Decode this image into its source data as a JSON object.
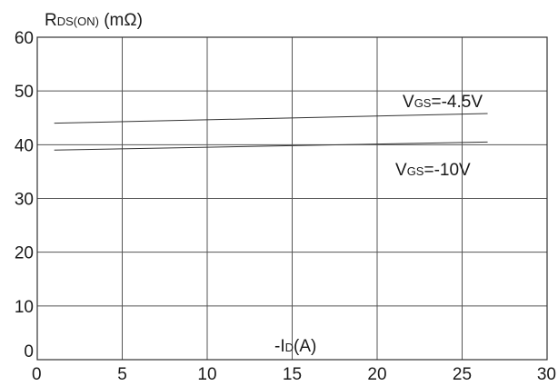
{
  "chart_data": {
    "type": "line",
    "title": "",
    "ylabel": {
      "main": "R",
      "sub": "DS(ON)",
      "tail": " (mΩ)"
    },
    "xlabel": {
      "prefix": "-I",
      "sub": "D",
      "tail": "(A)"
    },
    "xlim": [
      0,
      30
    ],
    "ylim": [
      0,
      60
    ],
    "xticks": [
      0,
      5,
      10,
      15,
      20,
      25,
      30
    ],
    "yticks": [
      0,
      10,
      20,
      30,
      40,
      50,
      60
    ],
    "grid": true,
    "line_color": "#333333",
    "grid_color": "#555555",
    "series": [
      {
        "name": {
          "main": "V",
          "sub": "GS",
          "tail": "=-4.5V"
        },
        "x": [
          1,
          26.5
        ],
        "y": [
          44,
          45.8
        ]
      },
      {
        "name": {
          "main": "V",
          "sub": "GS",
          "tail": "=-10V"
        },
        "x": [
          1,
          26.5
        ],
        "y": [
          39,
          40.5
        ]
      }
    ]
  }
}
